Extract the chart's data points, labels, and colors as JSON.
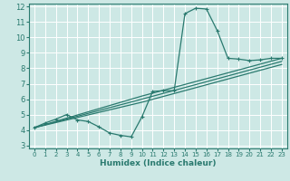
{
  "xlabel": "Humidex (Indice chaleur)",
  "ylabel": "",
  "xlim": [
    -0.5,
    23.5
  ],
  "ylim": [
    2.8,
    12.2
  ],
  "xticks": [
    0,
    1,
    2,
    3,
    4,
    5,
    6,
    7,
    8,
    9,
    10,
    11,
    12,
    13,
    14,
    15,
    16,
    17,
    18,
    19,
    20,
    21,
    22,
    23
  ],
  "yticks": [
    3,
    4,
    5,
    6,
    7,
    8,
    9,
    10,
    11,
    12
  ],
  "bg_color": "#cde8e5",
  "grid_color": "#ffffff",
  "line_color": "#2a7a6f",
  "line1_x": [
    0,
    1,
    2,
    3,
    4,
    5,
    6,
    7,
    8,
    9,
    10,
    11,
    12,
    13,
    14,
    15,
    16,
    17,
    18,
    19,
    20,
    21,
    22,
    23
  ],
  "line1_y": [
    4.15,
    4.45,
    4.7,
    5.0,
    4.65,
    4.55,
    4.2,
    3.8,
    3.65,
    3.55,
    4.85,
    6.5,
    6.55,
    6.55,
    11.55,
    11.9,
    11.85,
    10.45,
    8.65,
    8.6,
    8.5,
    8.55,
    8.65,
    8.65
  ],
  "line2_x": [
    0,
    10,
    23
  ],
  "line2_y": [
    4.15,
    6.2,
    8.65
  ],
  "line3_x": [
    0,
    10,
    23
  ],
  "line3_y": [
    4.15,
    6.0,
    8.45
  ],
  "line4_x": [
    0,
    10,
    23
  ],
  "line4_y": [
    4.15,
    5.8,
    8.25
  ],
  "marker_x": [
    0,
    1,
    2,
    3,
    4,
    5,
    6,
    7,
    8,
    9,
    10,
    11,
    12,
    13,
    14,
    15,
    16,
    17,
    18,
    19,
    20,
    21,
    22,
    23
  ],
  "marker_y": [
    4.15,
    4.45,
    4.7,
    5.0,
    4.65,
    4.55,
    4.2,
    3.8,
    3.65,
    3.55,
    4.85,
    6.5,
    6.55,
    6.55,
    11.55,
    11.9,
    11.85,
    10.45,
    8.65,
    8.6,
    8.5,
    8.55,
    8.65,
    8.65
  ]
}
